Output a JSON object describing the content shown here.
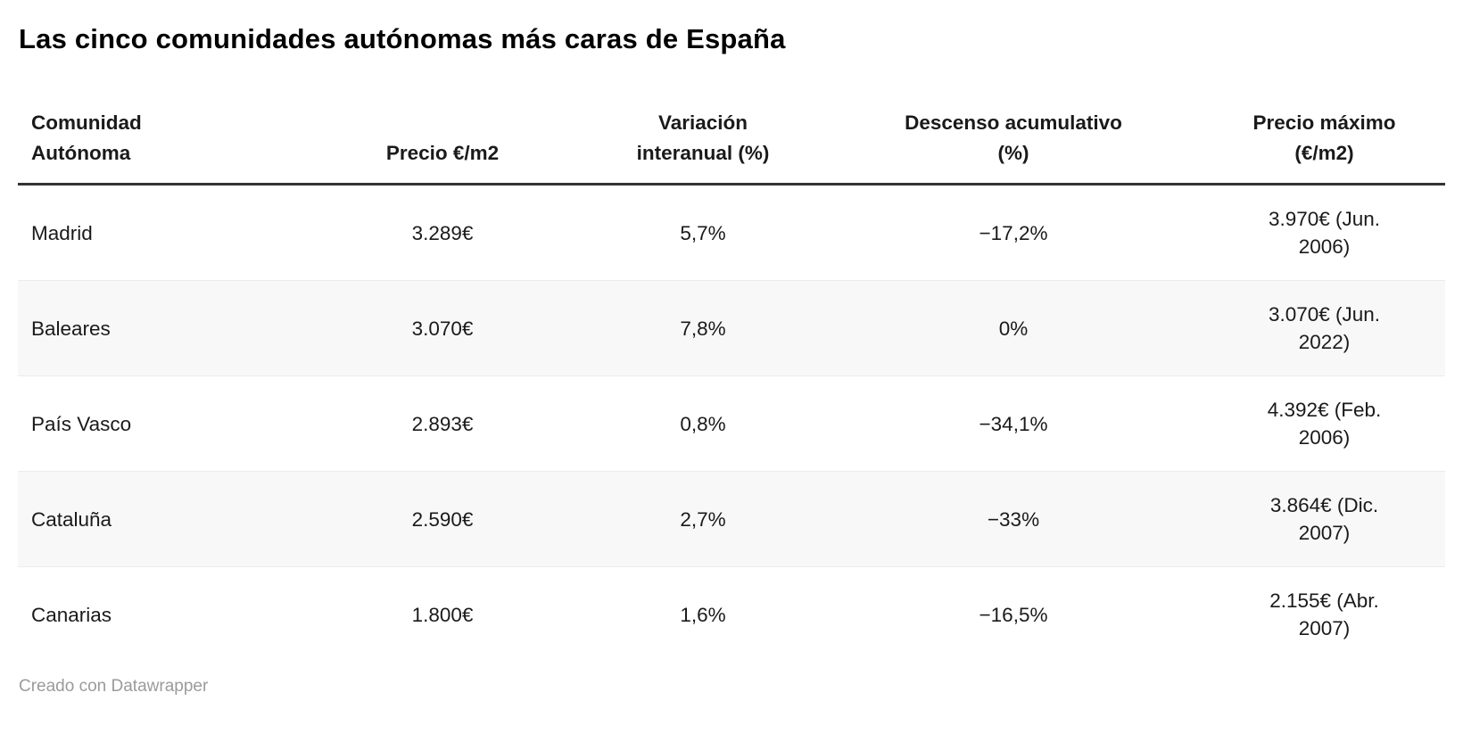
{
  "chart_data": {
    "type": "table",
    "title": "Las cinco comunidades autónomas más caras de España",
    "columns": [
      "Comunidad Autónoma",
      "Precio €/m2",
      "Variación interanual (%)",
      "Descenso acumulativo (%)",
      "Precio máximo (€/m2)"
    ],
    "rows": [
      [
        "Madrid",
        "3.289€",
        "5,7%",
        "−17,2%",
        "3.970€ (Jun. 2006)"
      ],
      [
        "Baleares",
        "3.070€",
        "7,8%",
        "0%",
        "3.070€ (Jun. 2022)"
      ],
      [
        "País Vasco",
        "2.893€",
        "0,8%",
        "−34,1%",
        "4.392€ (Feb. 2006)"
      ],
      [
        "Cataluña",
        "2.590€",
        "2,7%",
        "−33%",
        "3.864€ (Dic. 2007)"
      ],
      [
        "Canarias",
        "1.800€",
        "1,6%",
        "−16,5%",
        "2.155€ (Abr. 2007)"
      ]
    ],
    "values_numeric": {
      "precio_eur_m2": [
        3289,
        3070,
        2893,
        2590,
        1800
      ],
      "variacion_interanual_pct": [
        5.7,
        7.8,
        0.8,
        2.7,
        1.6
      ],
      "descenso_acumulativo_pct": [
        -17.2,
        0,
        -34.1,
        -33,
        -16.5
      ],
      "precio_maximo_eur_m2": [
        3970,
        3070,
        4392,
        3864,
        2155
      ],
      "precio_maximo_fecha": [
        "Jun. 2006",
        "Jun. 2022",
        "Feb. 2006",
        "Dic. 2007",
        "Abr. 2007"
      ]
    },
    "layout": {
      "striped_rows": true,
      "header_rule": true,
      "grid": "off",
      "legend": "none"
    }
  },
  "footer": {
    "credit": "Creado con Datawrapper"
  },
  "style": {
    "row_stripe_color": "#f8f8f8",
    "header_rule_color": "#333333",
    "row_divider_color": "#ebebeb",
    "credit_text_color": "#9b9b9b",
    "text_color": "#1a1a1a",
    "background_color": "#ffffff"
  }
}
